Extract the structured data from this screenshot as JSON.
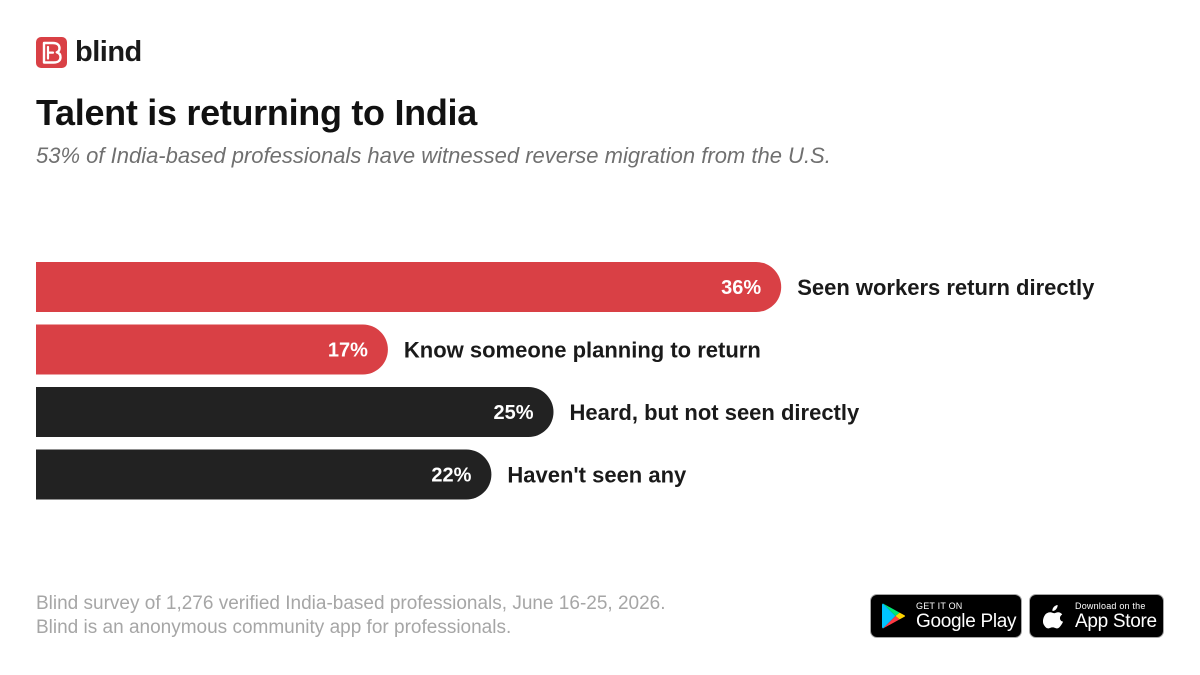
{
  "brand": {
    "name": "blind",
    "accent_color": "#d94045"
  },
  "header": {
    "title": "Talent is returning to India",
    "subtitle": "53% of India-based professionals have witnessed reverse migration from the U.S."
  },
  "chart_data": {
    "type": "bar",
    "orientation": "horizontal",
    "categories": [
      "Seen workers return directly",
      "Know someone planning to return",
      "Heard, but not seen directly",
      "Haven't seen any"
    ],
    "values": [
      36,
      17,
      25,
      22
    ],
    "value_labels": [
      "36%",
      "17%",
      "25%",
      "22%"
    ],
    "colors": [
      "#d94045",
      "#d94045",
      "#222222",
      "#222222"
    ],
    "unit": "%",
    "grid": false,
    "legend": "none"
  },
  "footer": {
    "note_line1": "Blind survey of 1,276 verified India-based professionals, June 16-25, 2026.",
    "note_line2": "Blind is an anonymous community app for professionals."
  },
  "badges": {
    "google_small": "GET IT ON",
    "google_large": "Google Play",
    "google_icon": "google-play-icon",
    "apple_small": "Download on the",
    "apple_large": "App Store",
    "apple_icon": "apple-icon"
  }
}
